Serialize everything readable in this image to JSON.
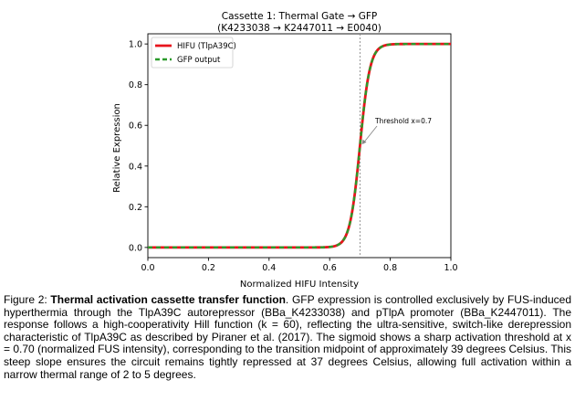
{
  "chart_data": {
    "type": "line",
    "title_line1": "Cassette 1: Thermal Gate → GFP",
    "title_line2": "(K4233038 → K2447011 → E0040)",
    "xlabel": "Normalized HIFU Intensity",
    "ylabel": "Relative Expression",
    "xlim": [
      0.0,
      1.0
    ],
    "ylim": [
      -0.05,
      1.05
    ],
    "x_ticks": [
      "0.0",
      "0.2",
      "0.4",
      "0.6",
      "0.8",
      "1.0"
    ],
    "y_ticks": [
      "0.0",
      "0.2",
      "0.4",
      "0.6",
      "0.8",
      "1.0"
    ],
    "grid": false,
    "legend_position": "top-left",
    "model": {
      "function": "sigmoid",
      "k": 60,
      "threshold": 0.7
    },
    "series": [
      {
        "name": "HIFU (TlpA39C)",
        "color": "#e8141c",
        "style": "solid"
      },
      {
        "name": "GFP output",
        "color": "#2a9a2a",
        "style": "dashed"
      }
    ],
    "annotation": {
      "text": "Threshold x=0.7",
      "x": 0.7,
      "y": 0.5,
      "text_x": 0.75,
      "text_y": 0.61
    },
    "threshold_line": {
      "x": 0.7,
      "color": "#888888"
    }
  },
  "caption": {
    "prefix": "Figure 2: ",
    "bold": "Thermal activation cassette transfer function",
    "body": ". GFP expression is controlled exclusively by FUS-induced hyperthermia through the TlpA39C autorepressor (BBa_K4233038) and pTlpA promoter (BBa_K2447011). The response follows a high-cooperativity Hill function (k = 60), reflecting the ultra-sensitive, switch-like derepression characteristic of TlpA39C as described by Piraner et al. (2017). The sigmoid shows a sharp activation threshold at x = 0.70 (normalized FUS intensity), corresponding to the transition midpoint of approximately 39 degrees Celsius. This steep slope ensures the circuit remains tightly repressed at 37 degrees Celsius, allowing full activation within a narrow thermal range of 2 to 5 degrees."
  }
}
